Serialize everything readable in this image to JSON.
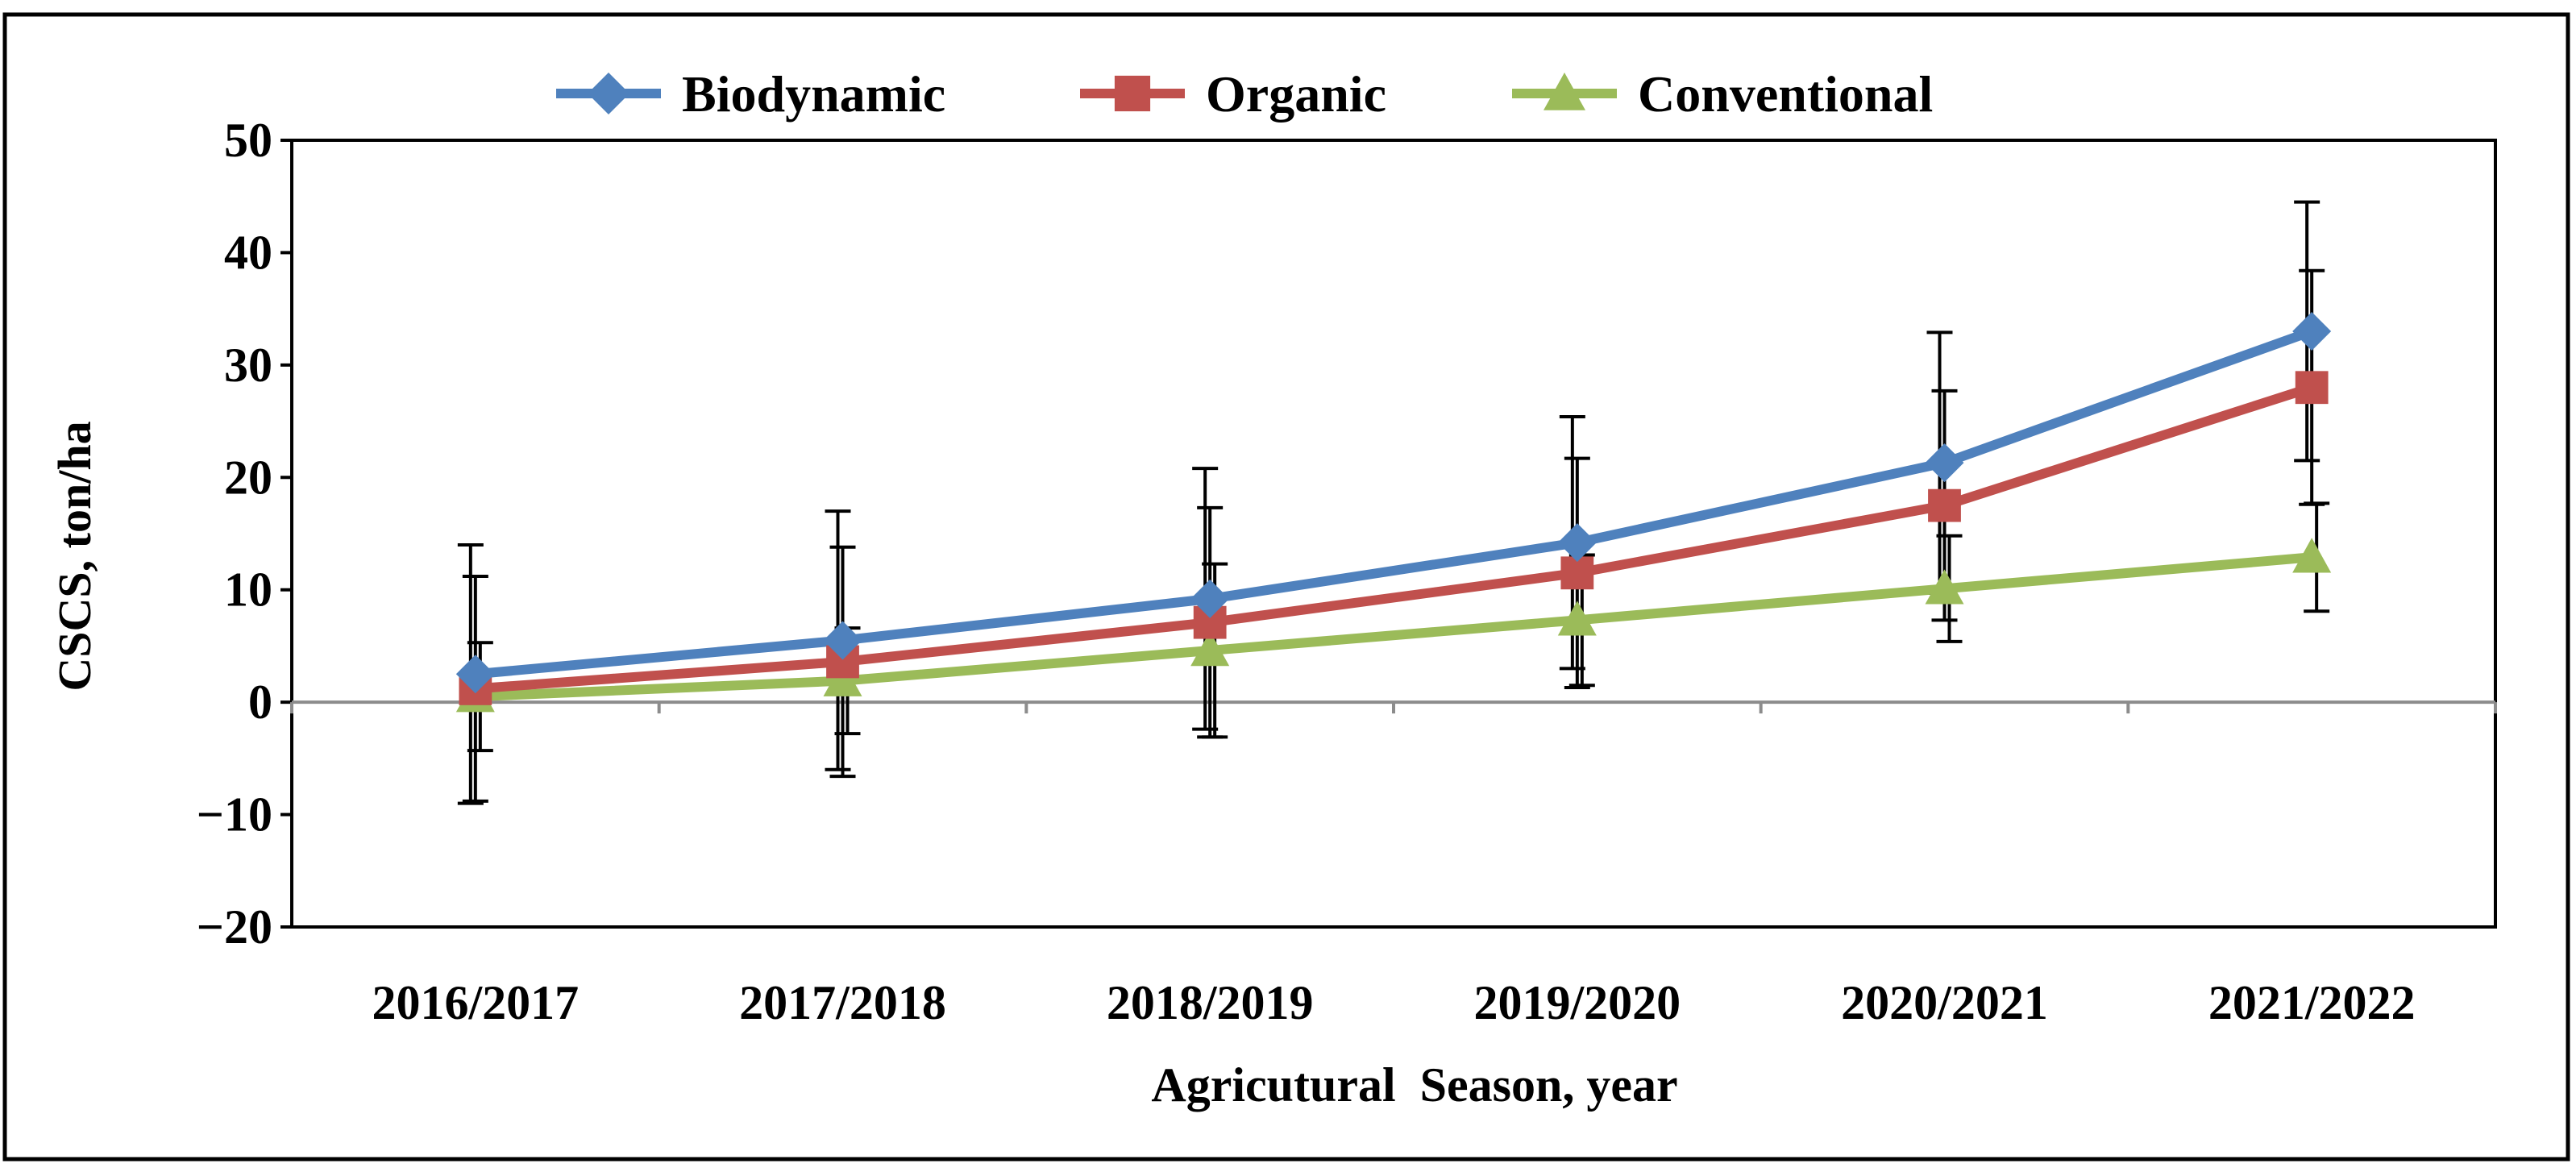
{
  "chart_data": {
    "type": "line",
    "title": "",
    "xlabel": "Agricutural  Season, year",
    "ylabel": "CSCS, ton/ha",
    "ylim": [
      -20,
      50
    ],
    "yticks": [
      "50",
      "40",
      "30",
      "20",
      "10",
      "0",
      "−10",
      "−20"
    ],
    "yticks_values": [
      50,
      40,
      30,
      20,
      10,
      0,
      -10,
      -20
    ],
    "categories": [
      "2016/2017",
      "2017/2018",
      "2018/2019",
      "2019/2020",
      "2020/2021",
      "2021/2022"
    ],
    "grid": false,
    "legend_position": "top-center",
    "series": [
      {
        "name": "Biodynamic",
        "marker": "diamond",
        "color": "#4F81BD",
        "values": [
          2.5,
          5.5,
          9.2,
          14.2,
          21.3,
          33.0
        ],
        "error": [
          11.5,
          11.5,
          11.6,
          11.2,
          11.6,
          11.5
        ]
      },
      {
        "name": "Organic",
        "marker": "square",
        "color": "#C0504D",
        "values": [
          1.2,
          3.6,
          7.1,
          11.5,
          17.5,
          28.0
        ],
        "error": [
          10.0,
          10.2,
          10.2,
          10.2,
          10.2,
          10.4
        ]
      },
      {
        "name": "Conventional",
        "marker": "triangle",
        "color": "#9BBB59",
        "values": [
          0.5,
          1.9,
          4.6,
          7.3,
          10.1,
          12.9
        ],
        "error": [
          4.8,
          4.7,
          7.7,
          5.8,
          4.7,
          4.8
        ]
      }
    ]
  }
}
